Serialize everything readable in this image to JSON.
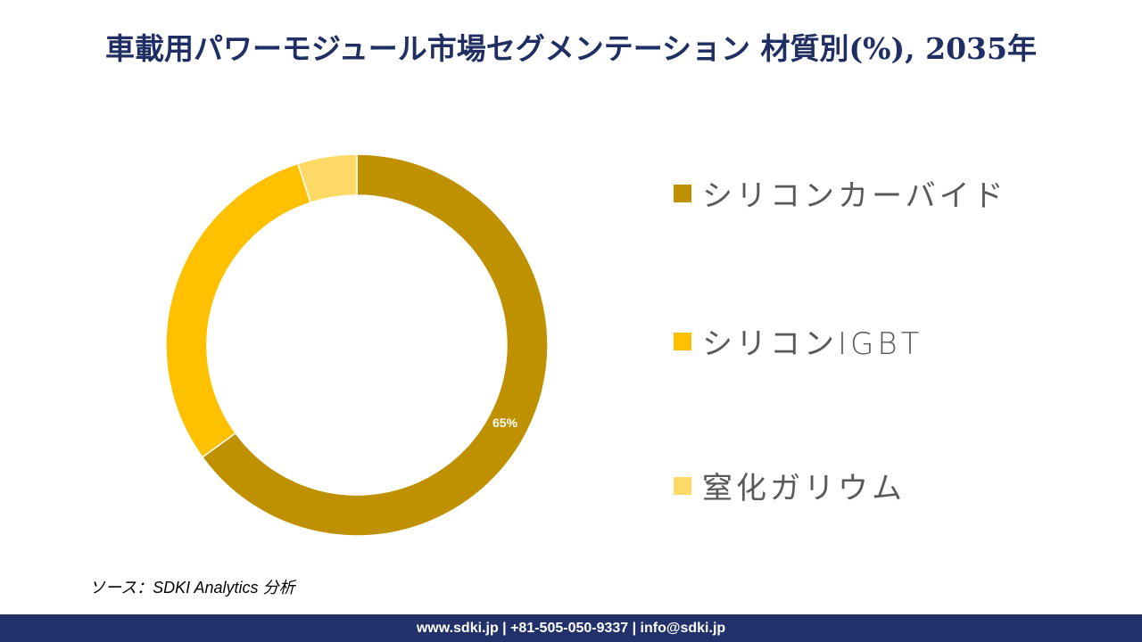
{
  "title": "車載用パワーモジュール市場セグメンテーション 材質別(%), 2035年",
  "chart_data": {
    "type": "pie",
    "subtype": "donut",
    "title": "車載用パワーモジュール市場セグメンテーション 材質別(%), 2035年",
    "categories": [
      "シリコンカーバイド",
      "シリコンIGBT",
      "窒化ガリウム"
    ],
    "values": [
      65,
      30,
      5
    ],
    "colors": [
      "#bf9000",
      "#ffc000",
      "#ffd966"
    ],
    "data_labels": [
      "65%",
      "",
      ""
    ],
    "legend_position": "right",
    "start_angle_deg": 0,
    "direction": "clockwise"
  },
  "labels": {
    "sic_pct": "65%"
  },
  "legend": {
    "items": [
      {
        "label": "シリコンカーバイド",
        "color": "#bf9000"
      },
      {
        "label": "シリコンIGBT",
        "color": "#ffc000"
      },
      {
        "label": "窒化ガリウム",
        "color": "#ffd966"
      }
    ]
  },
  "source": "ソース：SDKI Analytics 分析",
  "footer": "www.sdki.jp | +81-505-050-9337 | info@sdki.jp"
}
